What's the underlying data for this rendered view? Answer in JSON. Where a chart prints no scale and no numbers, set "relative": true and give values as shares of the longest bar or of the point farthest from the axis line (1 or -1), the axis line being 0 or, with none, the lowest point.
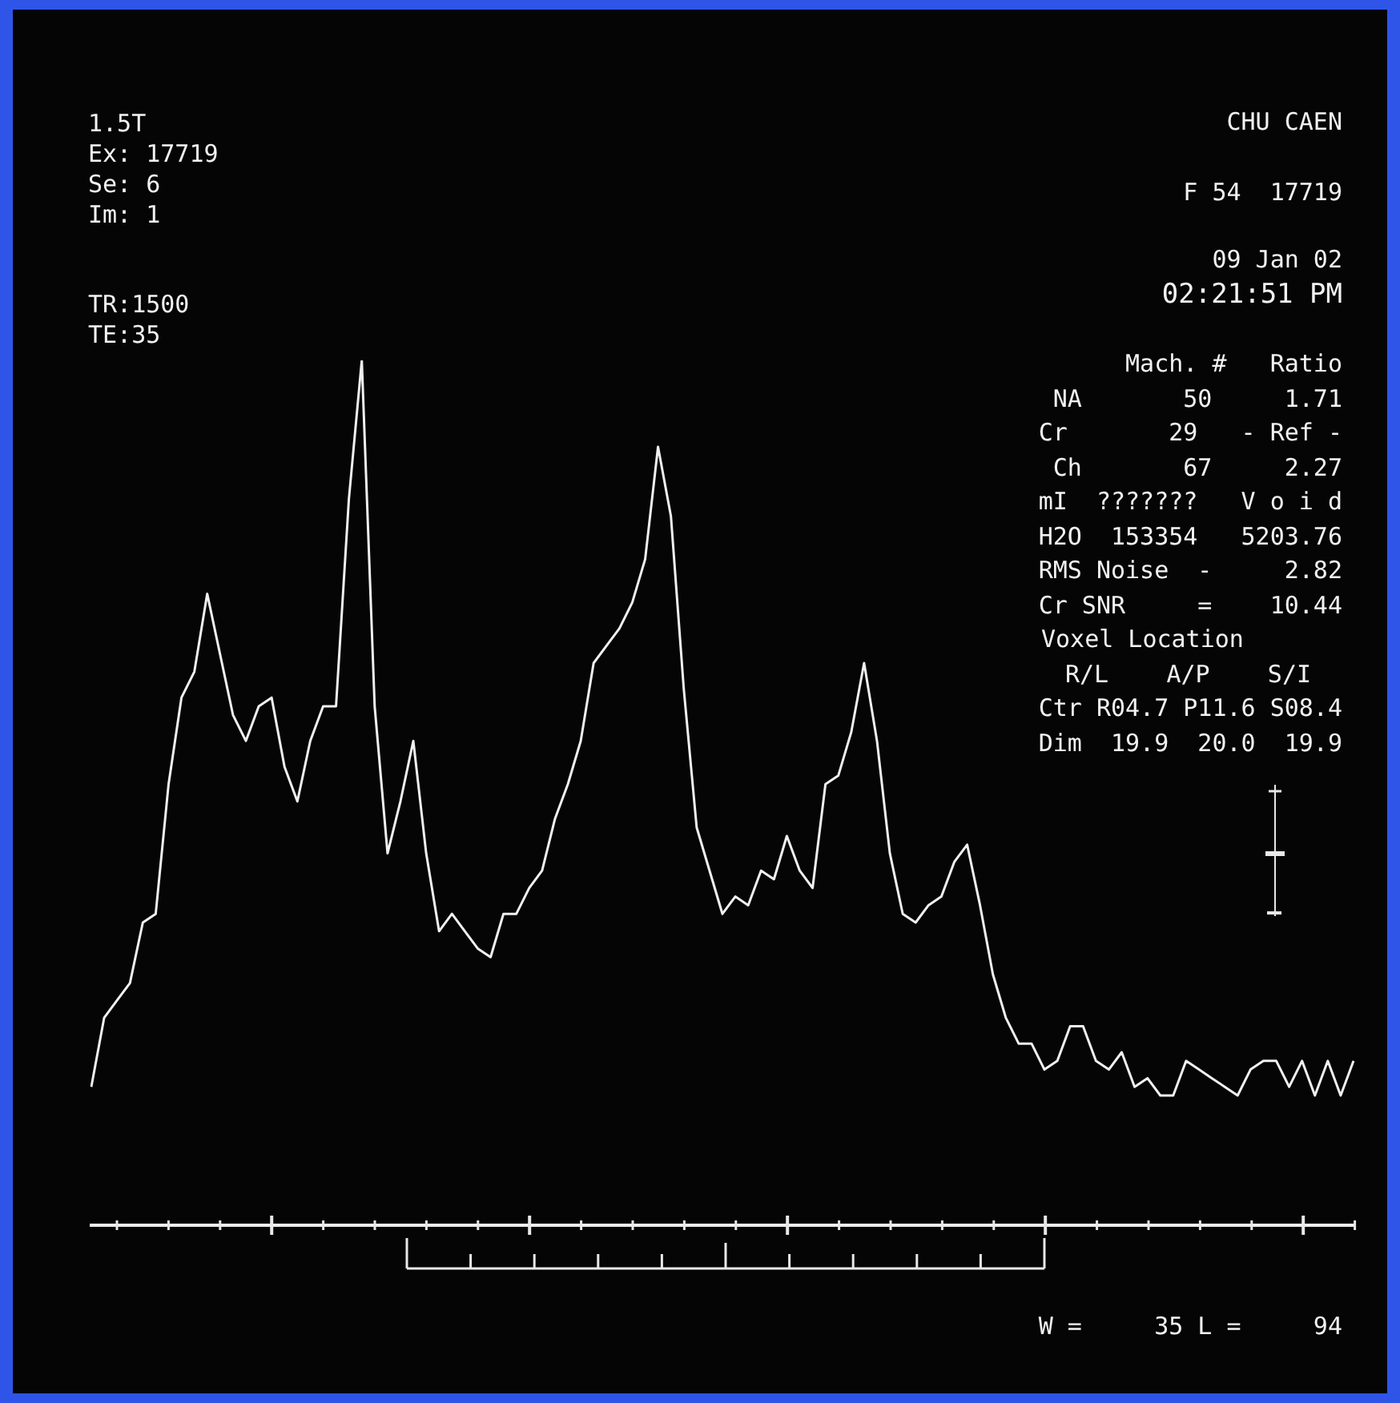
{
  "chart_data": {
    "type": "line",
    "relative": true,
    "color": "#f0f0f0",
    "categories": [
      null,
      null,
      null,
      null,
      null,
      null,
      null,
      null,
      null,
      null,
      null,
      null,
      null,
      null,
      null,
      null,
      null,
      null,
      null,
      null,
      null,
      null,
      null,
      null,
      null,
      null,
      null,
      null,
      null,
      null,
      null,
      null,
      null,
      null,
      null,
      null,
      null,
      null,
      null,
      null,
      null,
      null,
      null,
      null,
      null,
      null,
      null,
      null,
      null,
      null,
      null,
      null,
      null,
      null,
      null,
      null,
      null,
      null,
      null,
      null,
      null,
      null,
      null,
      null,
      null,
      null,
      null,
      null,
      null,
      null,
      null,
      null,
      null,
      null,
      null,
      null,
      null,
      null,
      null,
      null,
      null,
      null,
      null,
      null,
      null,
      null,
      null,
      null,
      null,
      null,
      null,
      null,
      null,
      null,
      null,
      null,
      null,
      null,
      null
    ],
    "values": [
      0.16,
      0.24,
      0.26,
      0.28,
      0.35,
      0.36,
      0.51,
      0.61,
      0.64,
      0.73,
      0.66,
      0.59,
      0.56,
      0.6,
      0.61,
      0.53,
      0.49,
      0.56,
      0.6,
      0.6,
      0.84,
      1.0,
      0.6,
      0.43,
      0.49,
      0.56,
      0.43,
      0.34,
      0.36,
      0.34,
      0.32,
      0.31,
      0.36,
      0.36,
      0.39,
      0.41,
      0.47,
      0.51,
      0.56,
      0.65,
      0.67,
      0.69,
      0.72,
      0.77,
      0.9,
      0.82,
      0.62,
      0.46,
      0.41,
      0.36,
      0.38,
      0.37,
      0.41,
      0.4,
      0.45,
      0.41,
      0.39,
      0.51,
      0.52,
      0.57,
      0.65,
      0.56,
      0.43,
      0.36,
      0.35,
      0.37,
      0.38,
      0.42,
      0.44,
      0.37,
      0.29,
      0.24,
      0.21,
      0.21,
      0.18,
      0.19,
      0.23,
      0.23,
      0.19,
      0.18,
      0.2,
      0.16,
      0.17,
      0.15,
      0.15,
      0.19,
      0.18,
      0.17,
      0.16,
      0.15,
      0.18,
      0.19,
      0.19,
      0.16,
      0.19,
      0.15,
      0.19,
      0.15,
      0.19
    ],
    "annotations": [
      "1.5T",
      "Ex: 17719",
      "Se: 6",
      "Im: 1",
      "TR:1500",
      "TE:35",
      "CHU CAEN",
      "F 54  17719",
      "09 Jan 02",
      "02:21:51 PM",
      "Mach. #   Ratio",
      "NA       50     1.71",
      "Cr       29   - Ref -",
      "Ch       67     2.27",
      "mI  ???????   V o i d",
      "H2O  153354   5203.76",
      "RMS Noise  -     2.82",
      "Cr SNR     =    10.44",
      "Voxel Location",
      "R/L    A/P    S/I",
      "Ctr R04.7 P11.6 S08.4",
      "Dim  19.9  20.0  19.9",
      "W =     35 L =     94"
    ]
  }
}
